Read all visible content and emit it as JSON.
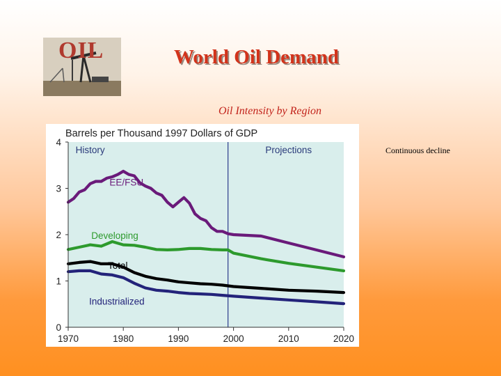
{
  "logo": {
    "text": "OIL"
  },
  "title": "World Oil Demand",
  "subtitle": "Oil Intensity by Region",
  "note": "Continuous decline",
  "chart_data": {
    "type": "line",
    "title": "Barrels per Thousand 1997 Dollars of GDP",
    "xlim": [
      1970,
      2020
    ],
    "ylim": [
      0,
      4
    ],
    "xticks": [
      1970,
      1980,
      1990,
      2000,
      2010,
      2020
    ],
    "yticks": [
      0,
      1,
      2,
      3,
      4
    ],
    "plot_background": "#d9eeec",
    "divider_year": 1999,
    "divider_color": "#2a3a8a",
    "regions": [
      {
        "label": "History",
        "year": 1974
      },
      {
        "label": "Projections",
        "year": 2010
      }
    ],
    "series": [
      {
        "name": "EE/FSU",
        "color": "#6a1a7a",
        "label_year": 1977.5,
        "label_value": 3.06,
        "label_color": "#6a1a7a",
        "x": [
          1970,
          1971,
          1972,
          1973,
          1974,
          1975,
          1976,
          1977,
          1978,
          1979,
          1980,
          1981,
          1982,
          1983,
          1984,
          1985,
          1986,
          1987,
          1988,
          1989,
          1990,
          1991,
          1992,
          1993,
          1994,
          1995,
          1996,
          1997,
          1998,
          1999,
          2000,
          2005,
          2010,
          2015,
          2020
        ],
        "values": [
          2.7,
          2.78,
          2.92,
          2.97,
          3.1,
          3.15,
          3.15,
          3.22,
          3.25,
          3.3,
          3.37,
          3.3,
          3.27,
          3.12,
          3.05,
          3.0,
          2.9,
          2.85,
          2.7,
          2.6,
          2.7,
          2.8,
          2.68,
          2.45,
          2.35,
          2.3,
          2.15,
          2.07,
          2.07,
          2.02,
          2.0,
          1.97,
          1.82,
          1.67,
          1.52
        ]
      },
      {
        "name": "Developing",
        "color": "#2d9a2d",
        "label_year": 1974.2,
        "label_value": 1.91,
        "label_color": "#2d9a2d",
        "x": [
          1970,
          1972,
          1974,
          1976,
          1978,
          1980,
          1982,
          1984,
          1986,
          1988,
          1990,
          1992,
          1994,
          1996,
          1998,
          1999,
          2000,
          2005,
          2010,
          2015,
          2020
        ],
        "values": [
          1.68,
          1.73,
          1.78,
          1.75,
          1.85,
          1.78,
          1.77,
          1.73,
          1.68,
          1.67,
          1.68,
          1.7,
          1.7,
          1.68,
          1.67,
          1.67,
          1.6,
          1.48,
          1.38,
          1.3,
          1.22
        ]
      },
      {
        "name": "Total",
        "color": "#000000",
        "label_year": 1977.2,
        "label_value": 1.26,
        "label_color": "#000000",
        "x": [
          1970,
          1972,
          1974,
          1976,
          1978,
          1980,
          1982,
          1984,
          1986,
          1988,
          1990,
          1992,
          1994,
          1996,
          1998,
          2000,
          2005,
          2010,
          2015,
          2020
        ],
        "values": [
          1.37,
          1.4,
          1.42,
          1.37,
          1.37,
          1.3,
          1.18,
          1.1,
          1.05,
          1.02,
          0.98,
          0.96,
          0.94,
          0.93,
          0.91,
          0.88,
          0.84,
          0.8,
          0.78,
          0.75
        ]
      },
      {
        "name": "Industrialized",
        "color": "#23237a",
        "label_year": 1973.8,
        "label_value": 0.49,
        "label_color": "#23237a",
        "x": [
          1970,
          1972,
          1974,
          1976,
          1978,
          1980,
          1982,
          1984,
          1986,
          1988,
          1990,
          1992,
          1994,
          1996,
          1998,
          2000,
          2005,
          2010,
          2015,
          2020
        ],
        "values": [
          1.2,
          1.22,
          1.22,
          1.15,
          1.13,
          1.07,
          0.95,
          0.85,
          0.8,
          0.78,
          0.75,
          0.73,
          0.72,
          0.71,
          0.69,
          0.67,
          0.63,
          0.59,
          0.55,
          0.51
        ]
      }
    ]
  }
}
